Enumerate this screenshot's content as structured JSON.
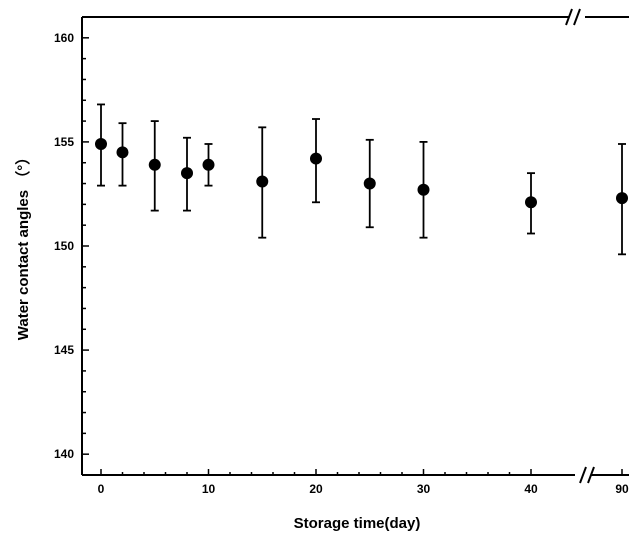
{
  "chart_data": {
    "type": "scatter",
    "title": "",
    "xlabel": "Storage time(day)",
    "ylabel": "Water contact angles （°）",
    "x": [
      0,
      2,
      5,
      8,
      10,
      15,
      20,
      25,
      30,
      40,
      90
    ],
    "x_tick_labels": [
      "0",
      "10",
      "20",
      "30",
      "40",
      "90"
    ],
    "x_tick_values": [
      0,
      10,
      20,
      30,
      40,
      90
    ],
    "xlim": [
      -1.5,
      90.5
    ],
    "x_axis_break": {
      "between": [
        40,
        90
      ],
      "marker": "//"
    },
    "ylim": [
      139,
      161
    ],
    "y_ticks": [
      140,
      145,
      150,
      155,
      160
    ],
    "series": [
      {
        "y": [
          154.9,
          154.5,
          153.9,
          153.5,
          153.9,
          153.1,
          154.2,
          153.0,
          152.7,
          152.1,
          152.3
        ],
        "err_low": [
          152.9,
          152.9,
          151.7,
          151.7,
          152.9,
          150.4,
          152.1,
          150.9,
          150.4,
          150.6,
          149.6
        ],
        "err_high": [
          156.8,
          155.9,
          156.0,
          155.2,
          154.9,
          155.7,
          156.1,
          155.1,
          155.0,
          153.5,
          154.9
        ],
        "marker": "filled-circle",
        "color": "#000000"
      }
    ],
    "grid": false,
    "legend": "none"
  }
}
